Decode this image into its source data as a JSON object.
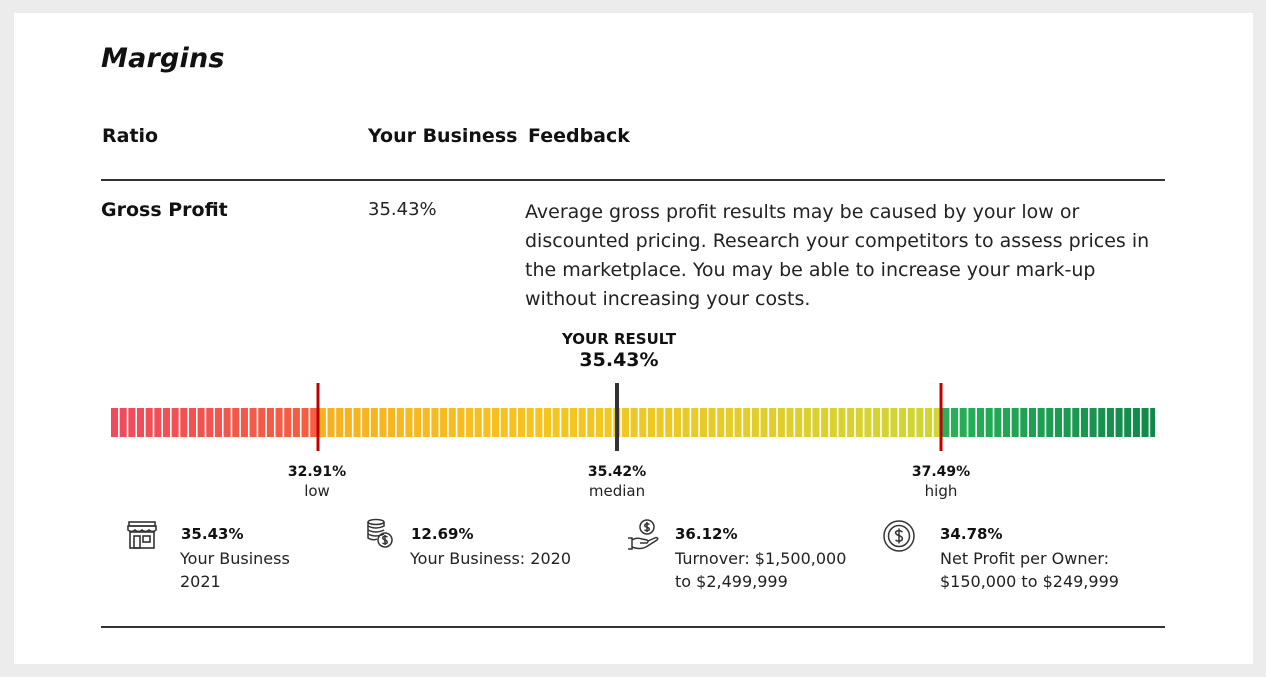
{
  "section": {
    "title": "Margins"
  },
  "table": {
    "headers": {
      "ratio": "Ratio",
      "your_business": "Your Business",
      "feedback": "Feedback"
    },
    "row": {
      "name": "Gross Profit",
      "value": "35.43%",
      "feedback": "Average gross profit results may be caused by your low or discounted pricing. Research your competitors to assess prices in the marketplace. You may be able to increase your mark-up without increasing your costs."
    }
  },
  "gauge": {
    "result_label": "YOUR RESULT",
    "result_value": "35.43%",
    "markers": {
      "low": {
        "value": "32.91%",
        "label": "low"
      },
      "median": {
        "value": "35.42%",
        "label": "median"
      },
      "high": {
        "value": "37.49%",
        "label": "high"
      }
    },
    "colors": {
      "low_zone": "#ef4a5e",
      "mid_zone": "#f7c41f",
      "high_zone": "#11874b",
      "threshold_marker": "#c00000",
      "median_marker": "#333333"
    }
  },
  "benchmarks": [
    {
      "icon": "storefront-icon",
      "percent": "35.43%",
      "line1": "Your Business",
      "line2": "2021"
    },
    {
      "icon": "coins-icon",
      "percent": "12.69%",
      "line1": "Your Business: 2020",
      "line2": ""
    },
    {
      "icon": "hand-coin-icon",
      "percent": "36.12%",
      "line1": "Turnover: $1,500,000",
      "line2": "to $2,499,999"
    },
    {
      "icon": "dollar-circle-icon",
      "percent": "34.78%",
      "line1": "Net Profit per Owner:",
      "line2": "$150,000 to $249,999"
    }
  ]
}
